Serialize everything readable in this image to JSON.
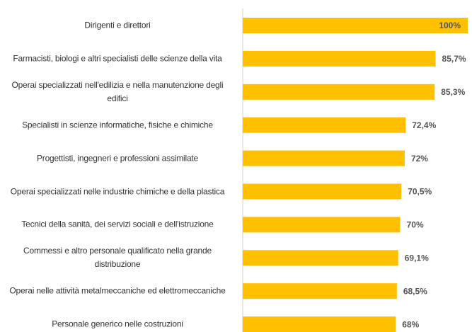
{
  "chart_data": {
    "type": "bar",
    "orientation": "horizontal",
    "categories": [
      "Dirigenti e direttori",
      "Farmacisti, biologi e altri specialisti delle scienze della vita",
      "Operai specializzati nell'edilizia  e nella manutenzione degli edifici",
      "Specialisti in scienze informatiche, fisiche e chimiche",
      "Progettisti, ingegneri e professioni assimilate",
      "Operai specializzati nelle industrie chimiche e della plastica",
      "Tecnici della sanità, dei servizi sociali e dell'istruzione",
      "Commessi e altro personale qualificato nella grande distribuzione",
      "Operai nelle attività metalmeccaniche ed elettromeccaniche",
      "Personale generico nelle costruzioni"
    ],
    "values": [
      100,
      85.7,
      85.3,
      72.4,
      72,
      70.5,
      70,
      69.1,
      68.5,
      68
    ],
    "value_labels": [
      "100%",
      "85,7%",
      "85,3%",
      "72,4%",
      "72%",
      "70,5%",
      "70%",
      "69,1%",
      "68,5%",
      "68%"
    ],
    "color": "#ffc000",
    "xlim": [
      0,
      100
    ]
  }
}
